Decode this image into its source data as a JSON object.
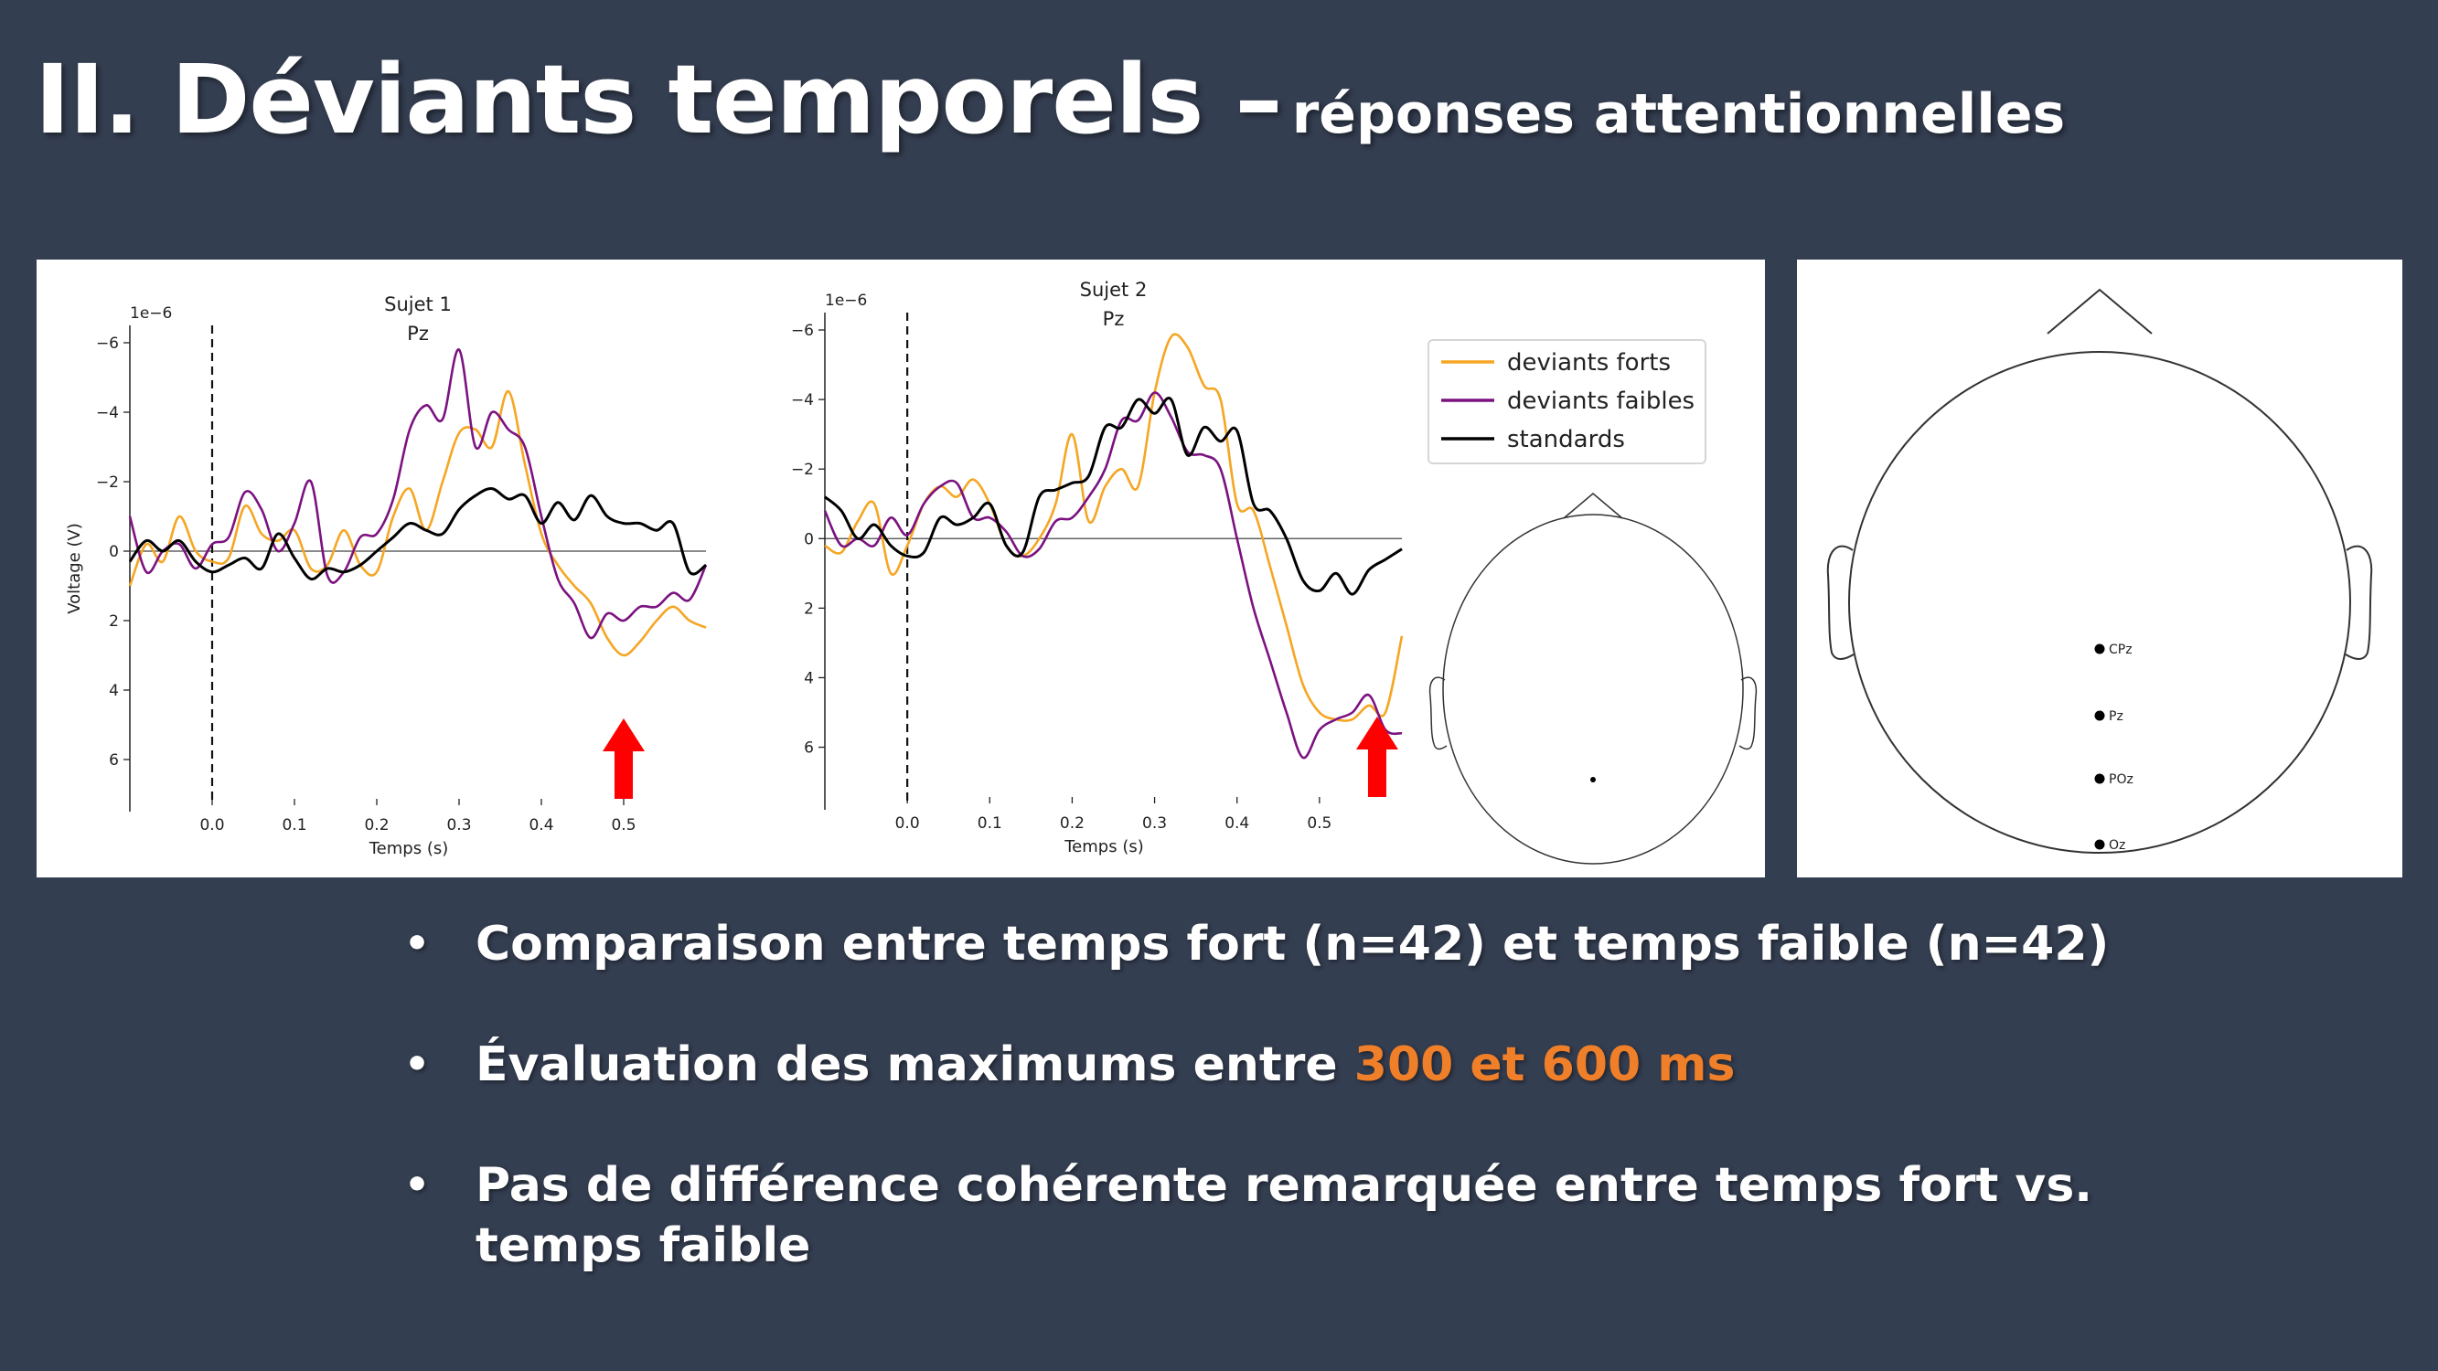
{
  "slide": {
    "title_main": "II. Déviants temporels –",
    "title_sub": "réponses attentionnelles"
  },
  "bullets": [
    {
      "text": "Comparaison entre temps fort (n=42) et temps faible (n=42)"
    },
    {
      "text_before": "Évaluation des maximums entre ",
      "highlight": "300 et 600 ms"
    },
    {
      "text": "Pas de différence cohérente remarquée entre temps fort vs. temps faible"
    }
  ],
  "montage": {
    "channels": [
      "CPz",
      "Pz",
      "POz",
      "Oz"
    ]
  },
  "colors": {
    "background": "#343e51",
    "deviants_forts": "#f5a623",
    "deviants_faibles": "#7b1280",
    "standards": "#000000",
    "arrow": "#ff0000",
    "highlight": "#f07f2a"
  },
  "chart_data": [
    {
      "type": "line",
      "title": "Sujet 1",
      "subtitle": "Pz",
      "xlabel": "Temps (s)",
      "ylabel": "Voltage (V)",
      "y_scale_label": "1e−6",
      "xlim": [
        -0.1,
        0.6
      ],
      "ylim": [
        7.5,
        -6.5
      ],
      "y_inverted": true,
      "xticks": [
        0.0,
        0.1,
        0.2,
        0.3,
        0.4,
        0.5
      ],
      "xtick_labels": [
        "0.0",
        "0.1",
        "0.2",
        "0.3",
        "0.4",
        "0.5"
      ],
      "yticks": [
        -6,
        -4,
        -2,
        0,
        2,
        4,
        6
      ],
      "ytick_labels": [
        "−6",
        "−4",
        "−2",
        "0",
        "2",
        "4",
        "6"
      ],
      "event_marker_x": 0.0,
      "arrow_x": 0.5,
      "series": [
        {
          "name": "deviants forts",
          "color": "#f5a623",
          "x": [
            -0.1,
            -0.08,
            -0.06,
            -0.04,
            -0.02,
            0.0,
            0.02,
            0.04,
            0.06,
            0.08,
            0.1,
            0.12,
            0.14,
            0.16,
            0.18,
            0.2,
            0.22,
            0.24,
            0.26,
            0.28,
            0.3,
            0.32,
            0.34,
            0.36,
            0.38,
            0.4,
            0.42,
            0.44,
            0.46,
            0.48,
            0.5,
            0.52,
            0.54,
            0.56,
            0.58,
            0.6
          ],
          "values": [
            1.0,
            -0.2,
            0.3,
            -1.0,
            0.0,
            0.3,
            0.2,
            -1.3,
            -0.5,
            -0.3,
            -0.6,
            0.5,
            0.4,
            -0.6,
            0.4,
            0.6,
            -1.0,
            -1.8,
            -0.6,
            -2.0,
            -3.4,
            -3.5,
            -3.0,
            -4.6,
            -2.5,
            -0.5,
            0.4,
            1.0,
            1.5,
            2.5,
            3.0,
            2.6,
            2.0,
            1.6,
            2.0,
            2.2
          ]
        },
        {
          "name": "deviants faibles",
          "color": "#7b1280",
          "x": [
            -0.1,
            -0.08,
            -0.06,
            -0.04,
            -0.02,
            0.0,
            0.02,
            0.04,
            0.06,
            0.08,
            0.1,
            0.12,
            0.14,
            0.16,
            0.18,
            0.2,
            0.22,
            0.24,
            0.26,
            0.28,
            0.3,
            0.32,
            0.34,
            0.36,
            0.38,
            0.4,
            0.42,
            0.44,
            0.46,
            0.48,
            0.5,
            0.52,
            0.54,
            0.56,
            0.58,
            0.6
          ],
          "values": [
            -1.0,
            0.6,
            0.0,
            -0.2,
            0.5,
            -0.2,
            -0.4,
            -1.7,
            -1.2,
            0.0,
            -0.8,
            -2.0,
            0.7,
            0.6,
            -0.4,
            -0.5,
            -1.5,
            -3.5,
            -4.2,
            -3.8,
            -5.8,
            -3.0,
            -4.0,
            -3.5,
            -3.0,
            -1.0,
            0.8,
            1.5,
            2.5,
            1.8,
            2.0,
            1.6,
            1.6,
            1.2,
            1.4,
            0.4
          ]
        },
        {
          "name": "standards",
          "color": "#000000",
          "x": [
            -0.1,
            -0.08,
            -0.06,
            -0.04,
            -0.02,
            0.0,
            0.02,
            0.04,
            0.06,
            0.08,
            0.1,
            0.12,
            0.14,
            0.16,
            0.18,
            0.2,
            0.22,
            0.24,
            0.26,
            0.28,
            0.3,
            0.32,
            0.34,
            0.36,
            0.38,
            0.4,
            0.42,
            0.44,
            0.46,
            0.48,
            0.5,
            0.52,
            0.54,
            0.56,
            0.58,
            0.6
          ],
          "values": [
            0.3,
            -0.3,
            0.0,
            -0.3,
            0.3,
            0.6,
            0.4,
            0.2,
            0.5,
            -0.5,
            0.2,
            0.8,
            0.5,
            0.6,
            0.4,
            0.0,
            -0.4,
            -0.8,
            -0.6,
            -0.5,
            -1.2,
            -1.6,
            -1.8,
            -1.5,
            -1.6,
            -0.8,
            -1.4,
            -0.9,
            -1.6,
            -1.0,
            -0.8,
            -0.8,
            -0.6,
            -0.8,
            0.6,
            0.4
          ]
        }
      ]
    },
    {
      "type": "line",
      "title": "Sujet 2",
      "subtitle": "Pz",
      "xlabel": "Temps (s)",
      "ylabel": "",
      "y_scale_label": "1e−6",
      "xlim": [
        -0.1,
        0.6
      ],
      "ylim": [
        7.8,
        -6.5
      ],
      "y_inverted": true,
      "xticks": [
        0.0,
        0.1,
        0.2,
        0.3,
        0.4,
        0.5
      ],
      "xtick_labels": [
        "0.0",
        "0.1",
        "0.2",
        "0.3",
        "0.4",
        "0.5"
      ],
      "yticks": [
        -6,
        -4,
        -2,
        0,
        2,
        4,
        6
      ],
      "ytick_labels": [
        "−6",
        "−4",
        "−2",
        "0",
        "2",
        "4",
        "6"
      ],
      "event_marker_x": 0.0,
      "arrow_x": 0.57,
      "legend": {
        "placement": "top-right"
      },
      "series": [
        {
          "name": "deviants forts",
          "color": "#f5a623",
          "x": [
            -0.1,
            -0.08,
            -0.06,
            -0.04,
            -0.02,
            0.0,
            0.02,
            0.04,
            0.06,
            0.08,
            0.1,
            0.12,
            0.14,
            0.16,
            0.18,
            0.2,
            0.22,
            0.24,
            0.26,
            0.28,
            0.3,
            0.32,
            0.34,
            0.36,
            0.38,
            0.4,
            0.42,
            0.44,
            0.46,
            0.48,
            0.5,
            0.52,
            0.54,
            0.56,
            0.58,
            0.6
          ],
          "values": [
            0.2,
            0.4,
            -0.5,
            -1.0,
            1.0,
            0.2,
            -1.0,
            -1.5,
            -1.2,
            -1.7,
            -1.0,
            0.2,
            0.5,
            0.0,
            -1.0,
            -3.0,
            -0.5,
            -1.5,
            -2.0,
            -1.5,
            -4.2,
            -5.8,
            -5.5,
            -4.4,
            -4.0,
            -1.0,
            -0.8,
            0.8,
            2.5,
            4.2,
            5.0,
            5.2,
            5.2,
            4.8,
            5.0,
            2.8
          ]
        },
        {
          "name": "deviants faibles",
          "color": "#7b1280",
          "x": [
            -0.1,
            -0.08,
            -0.06,
            -0.04,
            -0.02,
            0.0,
            0.02,
            0.04,
            0.06,
            0.08,
            0.1,
            0.12,
            0.14,
            0.16,
            0.18,
            0.2,
            0.22,
            0.24,
            0.26,
            0.28,
            0.3,
            0.32,
            0.34,
            0.36,
            0.38,
            0.4,
            0.42,
            0.44,
            0.46,
            0.48,
            0.5,
            0.52,
            0.54,
            0.56,
            0.58,
            0.6
          ],
          "values": [
            -0.8,
            0.2,
            0.0,
            0.2,
            -0.6,
            -0.1,
            -1.0,
            -1.5,
            -1.6,
            -0.6,
            -0.6,
            -0.2,
            0.5,
            0.3,
            -0.5,
            -0.6,
            -1.2,
            -2.0,
            -3.4,
            -3.4,
            -4.2,
            -3.5,
            -2.5,
            -2.4,
            -2.0,
            0.0,
            2.0,
            3.5,
            5.0,
            6.3,
            5.5,
            5.2,
            5.0,
            4.5,
            5.5,
            5.6
          ]
        },
        {
          "name": "standards",
          "color": "#000000",
          "x": [
            -0.1,
            -0.08,
            -0.06,
            -0.04,
            -0.02,
            0.0,
            0.02,
            0.04,
            0.06,
            0.08,
            0.1,
            0.12,
            0.14,
            0.16,
            0.18,
            0.2,
            0.22,
            0.24,
            0.26,
            0.28,
            0.3,
            0.32,
            0.34,
            0.36,
            0.38,
            0.4,
            0.42,
            0.44,
            0.46,
            0.48,
            0.5,
            0.52,
            0.54,
            0.56,
            0.58,
            0.6
          ],
          "values": [
            -1.2,
            -0.8,
            0.0,
            -0.4,
            0.2,
            0.5,
            0.4,
            -0.6,
            -0.4,
            -0.6,
            -1.0,
            0.2,
            0.4,
            -1.2,
            -1.4,
            -1.6,
            -1.8,
            -3.2,
            -3.2,
            -4.0,
            -3.6,
            -4.0,
            -2.4,
            -3.2,
            -2.8,
            -3.1,
            -1.0,
            -0.8,
            0.0,
            1.2,
            1.5,
            1.0,
            1.6,
            0.9,
            0.6,
            0.3
          ]
        }
      ]
    }
  ]
}
